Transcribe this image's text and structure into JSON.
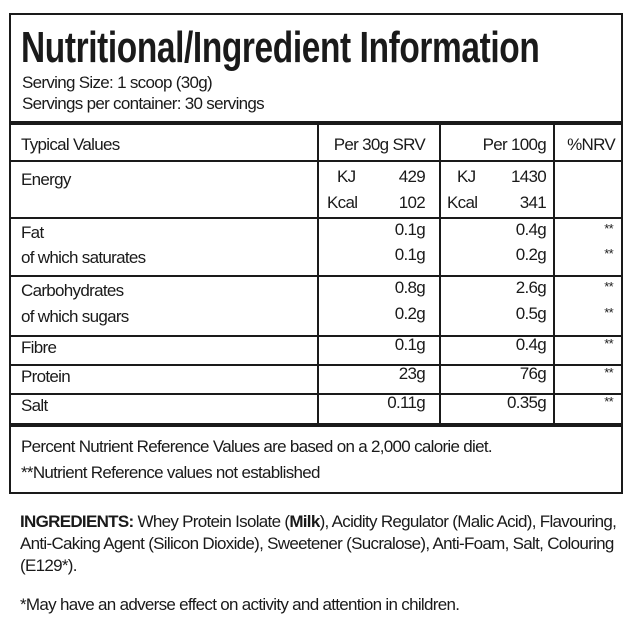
{
  "title": "Nutritional/Ingredient Information",
  "serving_size": "Serving Size: 1 scoop (30g)",
  "servings_per_container": "Servings per container: 30 servings",
  "table": {
    "headers": [
      "Typical Values",
      "Per 30g SRV",
      "Per 100g",
      "%NRV"
    ],
    "energy": {
      "label": "Energy",
      "kj_label": "KJ",
      "kcal_label": "Kcal",
      "srv_kj": "429",
      "srv_kcal": "102",
      "g100_kj": "1430",
      "g100_kcal": "341"
    },
    "rows": [
      {
        "label": "Fat",
        "srv": "0.1g",
        "g100": "0.4g",
        "nrv": "**"
      },
      {
        "label": "of which saturates",
        "srv": "0.1g",
        "g100": "0.2g",
        "nrv": "**"
      },
      {
        "label": "Carbohydrates",
        "srv": "0.8g",
        "g100": "2.6g",
        "nrv": "**"
      },
      {
        "label": "of which sugars",
        "srv": "0.2g",
        "g100": "0.5g",
        "nrv": "**"
      },
      {
        "label": "Fibre",
        "srv": "0.1g",
        "g100": "0.4g",
        "nrv": "**"
      },
      {
        "label": "Protein",
        "srv": "23g",
        "g100": "76g",
        "nrv": "**"
      },
      {
        "label": "Salt",
        "srv": "0.11g",
        "g100": "0.35g",
        "nrv": "**"
      }
    ]
  },
  "footer": {
    "line1": "Percent Nutrient Reference Values are based on a 2,000 calorie diet.",
    "line2": "**Nutrient Reference values not established"
  },
  "ingredients": {
    "label": "INGREDIENTS:",
    "text_before": " Whey Protein Isolate (",
    "allergen": "Milk",
    "text_after": "), Acidity Regulator (Malic Acid), Flavouring, Anti-Caking Agent (Silicon Dioxide), Sweetener (Sucralose), Anti-Foam, Salt, Colouring (E129*)."
  },
  "warning": "*May have an adverse effect on activity and attention in children."
}
